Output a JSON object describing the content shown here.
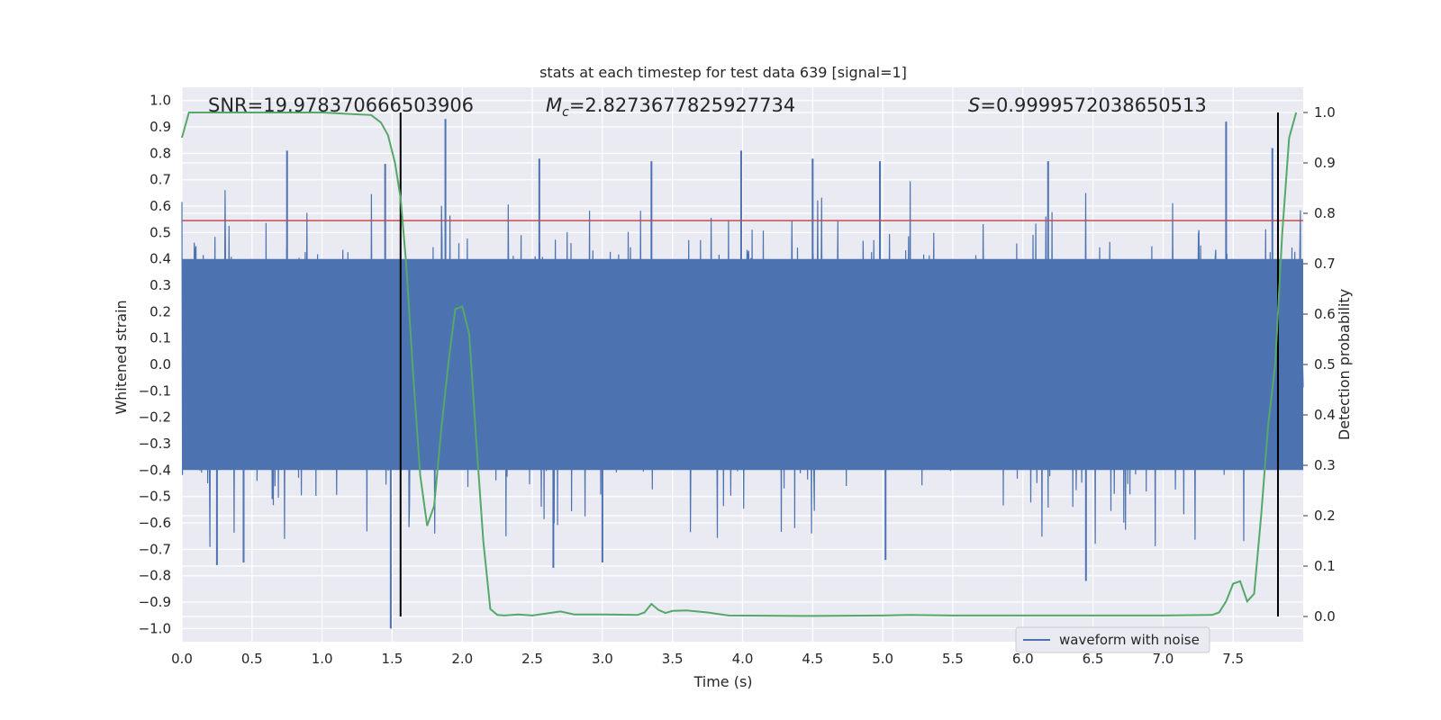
{
  "chart_data": {
    "type": "line",
    "title": "stats at each timestep for test data 639 [signal=1]",
    "xlabel": "Time (s)",
    "ylabel_left": "Whitened strain",
    "ylabel_right": "Detection probability",
    "xlim": [
      0,
      8
    ],
    "ylim_left": [
      -1.05,
      1.05
    ],
    "ylim_right": [
      -0.05,
      1.05
    ],
    "x_ticks": [
      "0.0",
      "0.5",
      "1.0",
      "1.5",
      "2.0",
      "2.5",
      "3.0",
      "3.5",
      "4.0",
      "4.5",
      "5.0",
      "5.5",
      "6.0",
      "6.5",
      "7.0",
      "7.5"
    ],
    "y_ticks_left": [
      "1.0",
      "0.9",
      "0.8",
      "0.7",
      "0.6",
      "0.5",
      "0.4",
      "0.3",
      "0.2",
      "0.1",
      "0.0",
      "−0.1",
      "−0.2",
      "−0.3",
      "−0.4",
      "−0.5",
      "−0.6",
      "−0.7",
      "−0.8",
      "−0.9",
      "−1.0"
    ],
    "y_ticks_right": [
      "1.0",
      "0.9",
      "0.8",
      "0.7",
      "0.6",
      "0.5",
      "0.4",
      "0.3",
      "0.2",
      "0.1",
      "0.0"
    ],
    "annotations": {
      "snr": "SNR=19.978370666503906",
      "mc_symbol": "M",
      "mc_subscript": "c",
      "mc_value": "=2.8273677825927734",
      "s_symbol": "S",
      "s_value": "=0.9999572038650513"
    },
    "legend": {
      "label": "waveform with noise",
      "position": "lower-right"
    },
    "grid": true,
    "threshold_line": {
      "y": 0.545,
      "color": "#c44e52"
    },
    "vertical_lines": [
      1.56,
      7.82
    ],
    "waveform": {
      "name": "waveform with noise",
      "color": "#4c72b0",
      "typical_envelope": [
        -0.4,
        0.4
      ],
      "spikes": [
        {
          "x": 0.75,
          "y": 0.81
        },
        {
          "x": 1.45,
          "y": 0.76
        },
        {
          "x": 1.49,
          "y": -1.0
        },
        {
          "x": 1.88,
          "y": 0.93
        },
        {
          "x": 2.55,
          "y": 0.78
        },
        {
          "x": 3.35,
          "y": 0.77
        },
        {
          "x": 3.99,
          "y": 0.81
        },
        {
          "x": 4.5,
          "y": 0.78
        },
        {
          "x": 4.98,
          "y": 0.77
        },
        {
          "x": 6.18,
          "y": 0.77
        },
        {
          "x": 6.45,
          "y": -0.82
        },
        {
          "x": 7.45,
          "y": 0.92
        },
        {
          "x": 7.78,
          "y": 0.82
        },
        {
          "x": 0.25,
          "y": -0.76
        },
        {
          "x": 0.44,
          "y": -0.75
        },
        {
          "x": 2.65,
          "y": -0.77
        },
        {
          "x": 3.0,
          "y": -0.75
        },
        {
          "x": 5.02,
          "y": -0.74
        }
      ]
    },
    "probability": {
      "name": "Detection probability",
      "color": "#55a868",
      "x": [
        0.0,
        0.05,
        0.2,
        0.6,
        1.0,
        1.35,
        1.42,
        1.47,
        1.52,
        1.56,
        1.6,
        1.65,
        1.7,
        1.75,
        1.8,
        1.85,
        1.9,
        1.95,
        2.0,
        2.05,
        2.1,
        2.15,
        2.2,
        2.25,
        2.3,
        2.4,
        2.5,
        2.7,
        2.8,
        3.0,
        3.25,
        3.3,
        3.35,
        3.4,
        3.45,
        3.5,
        3.6,
        3.75,
        3.9,
        4.5,
        5.0,
        5.2,
        5.5,
        6.0,
        6.5,
        7.0,
        7.35,
        7.4,
        7.45,
        7.5,
        7.55,
        7.6,
        7.65,
        7.7,
        7.75,
        7.8,
        7.85,
        7.9,
        7.95
      ],
      "y": [
        0.95,
        1.0,
        1.0,
        1.0,
        1.0,
        0.995,
        0.98,
        0.955,
        0.9,
        0.83,
        0.7,
        0.48,
        0.28,
        0.18,
        0.22,
        0.37,
        0.5,
        0.61,
        0.615,
        0.56,
        0.35,
        0.15,
        0.015,
        0.003,
        0.002,
        0.004,
        0.002,
        0.01,
        0.004,
        0.004,
        0.003,
        0.008,
        0.025,
        0.013,
        0.007,
        0.011,
        0.012,
        0.008,
        0.002,
        0.001,
        0.002,
        0.003,
        0.002,
        0.002,
        0.002,
        0.002,
        0.003,
        0.008,
        0.03,
        0.065,
        0.07,
        0.03,
        0.045,
        0.2,
        0.38,
        0.5,
        0.76,
        0.95,
        1.0
      ]
    }
  }
}
